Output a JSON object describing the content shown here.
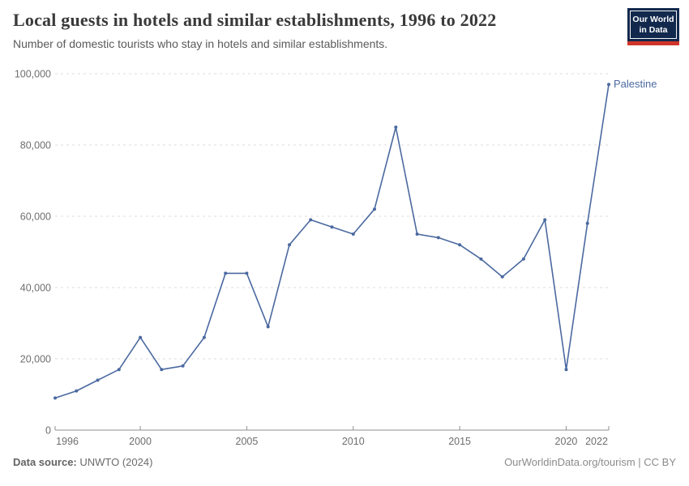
{
  "header": {
    "title": "Local guests in hotels and similar establishments, 1996 to 2022",
    "subtitle": "Number of domestic tourists who stay in hotels and similar establishments.",
    "logo": {
      "line1": "Our World",
      "line2": "in Data",
      "bg_color": "#12294d",
      "accent_color": "#d0352b"
    }
  },
  "chart_data": {
    "type": "line",
    "title": "Local guests in hotels and similar establishments, 1996 to 2022",
    "x": [
      1996,
      1997,
      1998,
      1999,
      2000,
      2001,
      2002,
      2003,
      2004,
      2005,
      2006,
      2007,
      2008,
      2009,
      2010,
      2011,
      2012,
      2013,
      2014,
      2015,
      2016,
      2017,
      2018,
      2019,
      2020,
      2021,
      2022
    ],
    "series": [
      {
        "name": "Palestine",
        "color": "#4b69a0",
        "values": [
          9000,
          11000,
          14000,
          17000,
          26000,
          17000,
          18000,
          26000,
          44000,
          44000,
          29000,
          52000,
          59000,
          57000,
          55000,
          62000,
          85000,
          55000,
          54000,
          52000,
          48000,
          43000,
          48000,
          59000,
          17000,
          58000,
          97000
        ]
      }
    ],
    "xlim": [
      1996,
      2022
    ],
    "ylim": [
      0,
      100000
    ],
    "xticks": [
      1996,
      2000,
      2005,
      2010,
      2015,
      2020,
      2022
    ],
    "yticks": [
      0,
      20000,
      40000,
      60000,
      80000,
      100000
    ],
    "grid": "horizontal-dashed",
    "grid_color": "#dcdcdc",
    "axis_color": "#8f8f8f",
    "tick_text_color": "#6e6e6e",
    "legend_position": "end-of-line-label",
    "end_label": "Palestine",
    "xlabel": "",
    "ylabel": ""
  },
  "footer": {
    "source_label": "Data source:",
    "source_value": " UNWTO (2024)",
    "credit": "OurWorldinData.org/tourism | CC BY"
  }
}
